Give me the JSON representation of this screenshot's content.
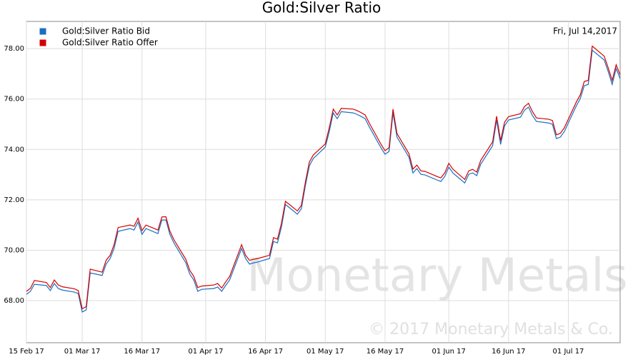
{
  "chart_data": {
    "type": "line",
    "title": "Gold:Silver Ratio",
    "date_label": "Fri, Jul 14,2017",
    "watermark": "Monetary Metals",
    "copyright": "© 2017 Monetary Metals & Co.",
    "legend": "upper left",
    "grid": true,
    "x": [
      "2017-02-15",
      "2017-02-16",
      "2017-02-17",
      "2017-02-20",
      "2017-02-21",
      "2017-02-22",
      "2017-02-23",
      "2017-02-24",
      "2017-02-27",
      "2017-02-28",
      "2017-03-01",
      "2017-03-02",
      "2017-03-03",
      "2017-03-06",
      "2017-03-07",
      "2017-03-08",
      "2017-03-09",
      "2017-03-10",
      "2017-03-13",
      "2017-03-14",
      "2017-03-15",
      "2017-03-16",
      "2017-03-17",
      "2017-03-20",
      "2017-03-21",
      "2017-03-22",
      "2017-03-23",
      "2017-03-24",
      "2017-03-27",
      "2017-03-28",
      "2017-03-29",
      "2017-03-30",
      "2017-03-31",
      "2017-04-03",
      "2017-04-04",
      "2017-04-05",
      "2017-04-06",
      "2017-04-07",
      "2017-04-10",
      "2017-04-11",
      "2017-04-12",
      "2017-04-13",
      "2017-04-14",
      "2017-04-17",
      "2017-04-18",
      "2017-04-19",
      "2017-04-20",
      "2017-04-21",
      "2017-04-24",
      "2017-04-25",
      "2017-04-26",
      "2017-04-27",
      "2017-04-28",
      "2017-05-01",
      "2017-05-02",
      "2017-05-03",
      "2017-05-04",
      "2017-05-05",
      "2017-05-08",
      "2017-05-09",
      "2017-05-10",
      "2017-05-11",
      "2017-05-12",
      "2017-05-15",
      "2017-05-16",
      "2017-05-17",
      "2017-05-18",
      "2017-05-19",
      "2017-05-22",
      "2017-05-23",
      "2017-05-24",
      "2017-05-25",
      "2017-05-26",
      "2017-05-29",
      "2017-05-30",
      "2017-05-31",
      "2017-06-01",
      "2017-06-02",
      "2017-06-05",
      "2017-06-06",
      "2017-06-07",
      "2017-06-08",
      "2017-06-09",
      "2017-06-12",
      "2017-06-13",
      "2017-06-14",
      "2017-06-15",
      "2017-06-16",
      "2017-06-19",
      "2017-06-20",
      "2017-06-21",
      "2017-06-22",
      "2017-06-23",
      "2017-06-26",
      "2017-06-27",
      "2017-06-28",
      "2017-06-29",
      "2017-06-30",
      "2017-07-03",
      "2017-07-04",
      "2017-07-05",
      "2017-07-06",
      "2017-07-07",
      "2017-07-10",
      "2017-07-11",
      "2017-07-12",
      "2017-07-13",
      "2017-07-14"
    ],
    "series": [
      {
        "name": "Gold:Silver Ratio Bid",
        "color": "#1a6fc4",
        "values": [
          68.25,
          68.37,
          68.65,
          68.6,
          68.4,
          68.68,
          68.48,
          68.42,
          68.34,
          68.28,
          67.55,
          67.63,
          69.1,
          69.0,
          69.45,
          69.67,
          70.07,
          70.75,
          70.86,
          70.8,
          71.12,
          70.63,
          70.86,
          70.66,
          71.2,
          71.2,
          70.63,
          70.29,
          69.5,
          69.05,
          68.82,
          68.37,
          68.45,
          68.48,
          68.54,
          68.37,
          68.6,
          68.82,
          70.07,
          69.67,
          69.45,
          69.5,
          69.53,
          69.67,
          70.35,
          70.29,
          70.92,
          71.82,
          71.43,
          71.65,
          72.56,
          73.35,
          73.64,
          74.09,
          74.71,
          75.45,
          75.22,
          75.5,
          75.45,
          75.39,
          75.31,
          75.22,
          74.91,
          74.06,
          73.81,
          73.92,
          75.45,
          74.49,
          73.69,
          73.07,
          73.24,
          73.01,
          72.99,
          72.79,
          72.73,
          72.93,
          73.3,
          73.07,
          72.67,
          73.01,
          73.07,
          72.96,
          73.41,
          74.15,
          75.17,
          74.2,
          74.94,
          75.17,
          75.28,
          75.56,
          75.68,
          75.34,
          75.11,
          75.05,
          75.0,
          74.43,
          74.49,
          74.71,
          75.73,
          76.02,
          76.53,
          76.58,
          77.94,
          77.55,
          77.09,
          76.58,
          77.21,
          76.81
        ]
      },
      {
        "name": "Gold:Silver Ratio Offer",
        "color": "#d40000",
        "values": [
          68.37,
          68.49,
          68.8,
          68.72,
          68.52,
          68.82,
          68.62,
          68.55,
          68.47,
          68.4,
          67.68,
          67.76,
          69.25,
          69.13,
          69.6,
          69.8,
          70.22,
          70.9,
          71.0,
          70.95,
          71.27,
          70.78,
          71.0,
          70.8,
          71.32,
          71.33,
          70.76,
          70.42,
          69.64,
          69.2,
          68.96,
          68.52,
          68.58,
          68.62,
          68.68,
          68.5,
          68.74,
          68.96,
          70.22,
          69.8,
          69.6,
          69.64,
          69.67,
          69.8,
          70.5,
          70.44,
          71.07,
          71.94,
          71.56,
          71.78,
          72.7,
          73.5,
          73.78,
          74.22,
          74.86,
          75.6,
          75.37,
          75.63,
          75.6,
          75.54,
          75.46,
          75.37,
          75.06,
          74.2,
          73.95,
          74.07,
          75.6,
          74.63,
          73.83,
          73.22,
          73.38,
          73.15,
          73.13,
          72.93,
          72.87,
          73.07,
          73.45,
          73.22,
          72.81,
          73.15,
          73.21,
          73.1,
          73.56,
          74.3,
          75.32,
          74.35,
          75.08,
          75.3,
          75.42,
          75.7,
          75.83,
          75.5,
          75.25,
          75.2,
          75.15,
          74.58,
          74.64,
          74.86,
          75.88,
          76.17,
          76.7,
          76.74,
          78.1,
          77.7,
          77.24,
          76.74,
          77.36,
          76.96
        ]
      }
    ],
    "xlim": [
      "2017-02-15",
      "2017-07-14"
    ],
    "xticks": [
      {
        "value": "2017-02-15",
        "label": "15 Feb 17"
      },
      {
        "value": "2017-03-01",
        "label": "01 Mar 17"
      },
      {
        "value": "2017-03-16",
        "label": "16 Mar 17"
      },
      {
        "value": "2017-04-01",
        "label": "01 Apr 17"
      },
      {
        "value": "2017-04-16",
        "label": "16 Apr 17"
      },
      {
        "value": "2017-05-01",
        "label": "01 May 17"
      },
      {
        "value": "2017-05-16",
        "label": "16 May 17"
      },
      {
        "value": "2017-06-01",
        "label": "01 Jun 17"
      },
      {
        "value": "2017-06-16",
        "label": "16 Jun 17"
      },
      {
        "value": "2017-07-01",
        "label": "01 Jul 17"
      }
    ],
    "ylim": [
      66.33,
      79.08
    ],
    "yticks": [
      {
        "value": 68,
        "label": "68.00"
      },
      {
        "value": 70,
        "label": "70.00"
      },
      {
        "value": 72,
        "label": "72.00"
      },
      {
        "value": 74,
        "label": "74.00"
      },
      {
        "value": 76,
        "label": "76.00"
      },
      {
        "value": 78,
        "label": "78.00"
      }
    ]
  }
}
